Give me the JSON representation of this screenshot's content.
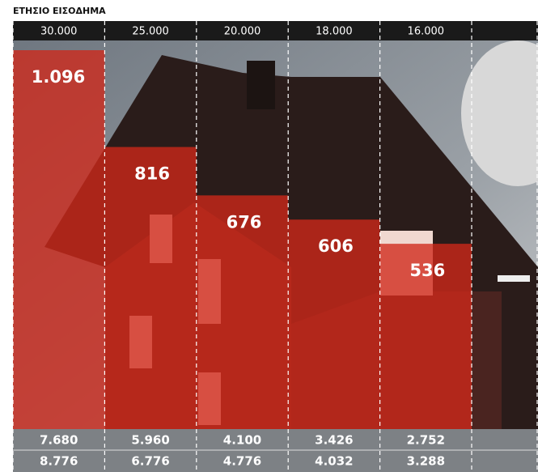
{
  "chart_data": {
    "type": "bar",
    "title": "ΕΤΗΣΙΟ ΕΙΣΟΔΗΜΑ",
    "categories": [
      "30.000",
      "25.000",
      "20.000",
      "18.000",
      "16.000"
    ],
    "values": [
      1096,
      816,
      676,
      606,
      536
    ],
    "value_labels": [
      "1.096",
      "816",
      "676",
      "606",
      "536"
    ],
    "color": "#d0281a",
    "table_rows": [
      [
        "7.680",
        "5.960",
        "4.100",
        "3.426",
        "2.752"
      ],
      [
        "8.776",
        "6.776",
        "4.776",
        "4.032",
        "3.288"
      ]
    ]
  }
}
